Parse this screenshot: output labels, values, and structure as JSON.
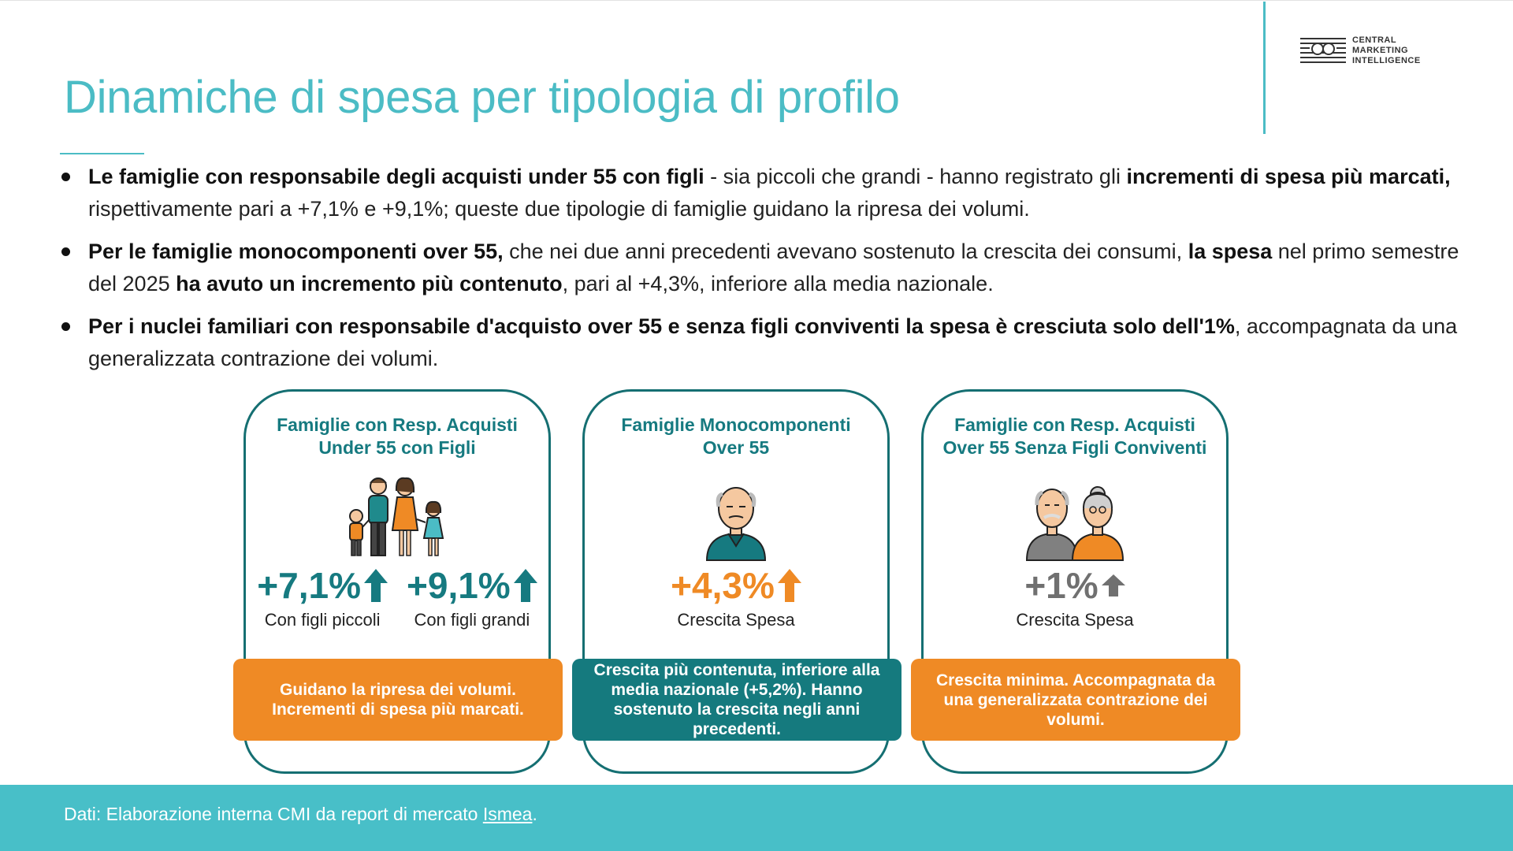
{
  "header": {
    "title": "Dinamiche di spesa per tipologia di profilo",
    "logo_lines": [
      "CENTRAL",
      "MARKETING",
      "INTELLIGENCE"
    ]
  },
  "bullets": [
    {
      "parts": [
        {
          "t": "Le famiglie con responsabile degli acquisti under 55 con figli",
          "b": true
        },
        {
          "t": " - sia piccoli che grandi - hanno registrato gli ",
          "b": false
        },
        {
          "t": "incrementi di spesa più marcati,",
          "b": true
        },
        {
          "t": " rispettivamente pari a +7,1% e +9,1%; queste due tipologie di famiglie guidano la ripresa dei volumi.",
          "b": false
        }
      ]
    },
    {
      "parts": [
        {
          "t": "Per le famiglie monocomponenti over 55,",
          "b": true
        },
        {
          "t": " che nei due anni precedenti avevano sostenuto la crescita dei consumi, ",
          "b": false
        },
        {
          "t": "la spesa",
          "b": true
        },
        {
          "t": " nel primo semestre del 2025 ",
          "b": false
        },
        {
          "t": "ha avuto un incremento più contenuto",
          "b": true
        },
        {
          "t": ", pari al +4,3%, inferiore alla media nazionale.",
          "b": false
        }
      ]
    },
    {
      "parts": [
        {
          "t": "Per i nuclei familiari con responsabile d'acquisto over 55 e senza figli conviventi la spesa è cresciuta solo dell'1%",
          "b": true
        },
        {
          "t": ", accompagnata da una generalizzata contrazione dei volumi.",
          "b": false
        }
      ]
    }
  ],
  "cards": [
    {
      "title_line1": "Famiglie con Resp. Acquisti",
      "title_line2": "Under 55 con Figli",
      "icon": "family-icon",
      "stats": [
        {
          "value": "+7,1%",
          "label": "Con figli piccoli",
          "color": "#167a80"
        },
        {
          "value": "+9,1%",
          "label": "Con figli grandi",
          "color": "#167a80"
        }
      ],
      "banner": "Guidano la ripresa dei volumi. Incrementi di spesa più marcati.",
      "banner_color": "#ef8a25",
      "under_color": "#15757a"
    },
    {
      "title_line1": "Famiglie Monocomponenti",
      "title_line2": "Over 55",
      "icon": "elderly-man-icon",
      "stats": [
        {
          "value": "+4,3%",
          "label": "Crescita Spesa",
          "color": "#ef8a25"
        }
      ],
      "banner": "Crescita più contenuta, inferiore alla media nazionale (+5,2%). Hanno sostenuto la crescita negli anni precedenti.",
      "banner_color": "#157a7e",
      "under_color": "#ef8a25"
    },
    {
      "title_line1": "Famiglie con Resp. Acquisti",
      "title_line2": "Over 55 Senza Figli Conviventi",
      "icon": "elderly-couple-icon",
      "stats": [
        {
          "value": "+1%",
          "label": "Crescita Spesa",
          "color": "#707070"
        }
      ],
      "banner": "Crescita minima. Accompagnata da una generalizzata contrazione dei volumi.",
      "banner_color": "#ef8a25",
      "under_color": "#8a8a8a"
    }
  ],
  "footer": {
    "prefix": "Dati: Elaborazione interna CMI da report di mercato ",
    "link": "Ismea",
    "suffix": "."
  }
}
